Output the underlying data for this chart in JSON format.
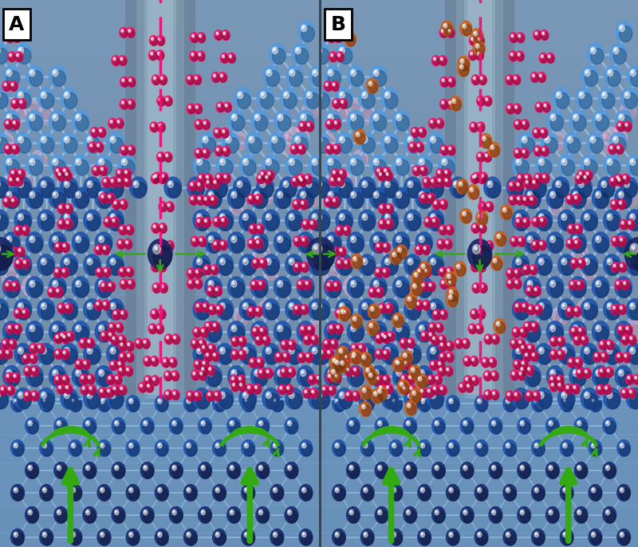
{
  "fig_width": 8.0,
  "fig_height": 6.86,
  "dpi": 100,
  "panel_A_label": "A",
  "panel_B_label": "B",
  "label_fontsize": 18,
  "al_dark": "#1a3070",
  "al_mid": "#2255aa",
  "al_light": "#5599dd",
  "al_lighter": "#88bbee",
  "bond_color": "#7aaad0",
  "bond_light": "#aaccee",
  "oxygen_color": "#ee1166",
  "oxygen_dark": "#bb0044",
  "copper_color": "#c86020",
  "copper_dark": "#994400",
  "pink_ghost": "#ffbbdd",
  "dashed_color": "#ee1177",
  "arrow_green": "#33aa11",
  "arrow_green_dark": "#226600",
  "arrow_green_edge": "#224400",
  "repulse_color": "#1a2565",
  "pore_gray": "#9ab0c0",
  "bg_steel": "#7899bb",
  "bg_light": "#a0bbd0",
  "fcc_bg": "#6688bb",
  "divider_color": "#334455"
}
